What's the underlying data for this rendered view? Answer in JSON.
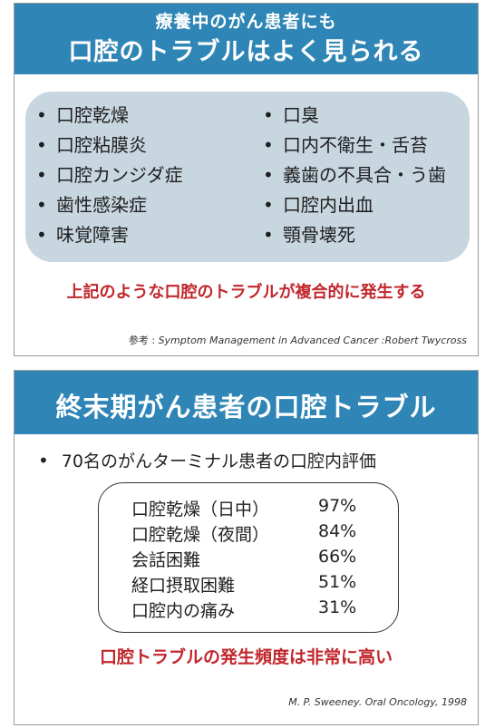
{
  "slide1": {
    "subtitle": "療養中のがん患者にも",
    "title": "口腔のトラブルはよく見られる",
    "left_items": [
      "口腔乾燥",
      "口腔粘膜炎",
      "口腔カンジダ症",
      "歯性感染症",
      "味覚障害"
    ],
    "right_items": [
      "口臭",
      "口内不衛生・舌苔",
      "義歯の不具合・う歯",
      "口腔内出血",
      "顎骨壊死"
    ],
    "bullet": "•",
    "conclusion": "上記のような口腔のトラブルが複合的に発生する",
    "reference_prefix": "参考 :",
    "reference": "Symptom Management in Advanced Cancer :Robert Twycross"
  },
  "slide2": {
    "title": "終末期がん患者の口腔トラブル",
    "intro": "70名のがんターミナル患者の口腔内評価",
    "stats": [
      {
        "label": "口腔乾燥（日中）",
        "value": "97%"
      },
      {
        "label": "口腔乾燥（夜間）",
        "value": "84%"
      },
      {
        "label": "会話困難",
        "value": "66%"
      },
      {
        "label": "経口摂取困難",
        "value": "51%"
      },
      {
        "label": "口腔内の痛み",
        "value": "31%"
      }
    ],
    "conclusion": "口腔トラブルの発生頻度は非常に高い",
    "reference": "M. P. Sweeney. Oral Oncology, 1998"
  },
  "colors": {
    "header_blue": "#2f86b6",
    "panel": "#c8d6e0",
    "conclusion_red": "#c1272d"
  }
}
